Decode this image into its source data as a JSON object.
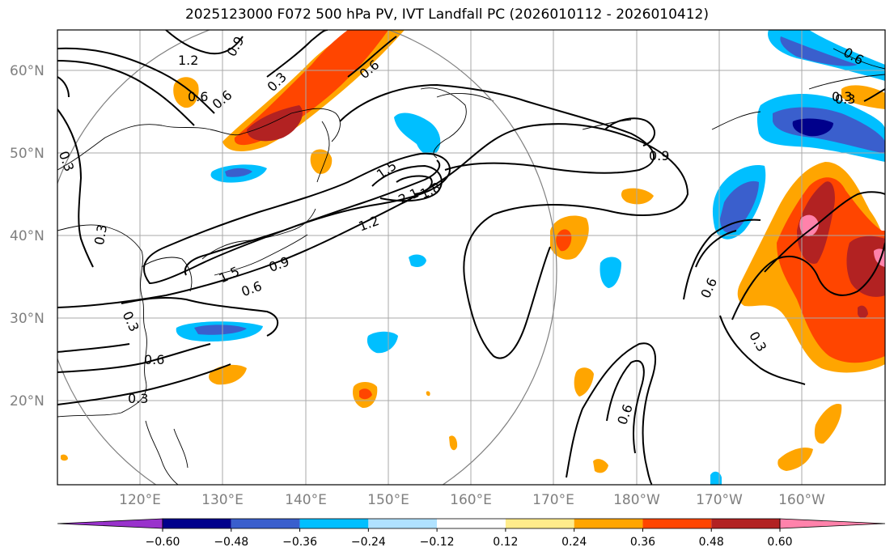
{
  "title": "2025123000 F072 500 hPa PV, IVT Landfall PC (2026010112 - 2026010412)",
  "latitude_labels": [
    "60°N",
    "50°N",
    "40°N",
    "30°N",
    "20°N"
  ],
  "longitude_labels": [
    "120°E",
    "130°E",
    "140°E",
    "150°E",
    "160°E",
    "170°E",
    "180°W",
    "170°W",
    "160°W"
  ],
  "colorbar": {
    "colors": [
      "#9932cc",
      "#00008b",
      "#3a5fcd",
      "#00bfff",
      "#b0e2ff",
      "#ffffff",
      "#ffec8b",
      "#ffa500",
      "#ff4500",
      "#b22222",
      "#ff82ab"
    ],
    "tick_labels": [
      "−0.60",
      "−0.48",
      "−0.36",
      "−0.24",
      "−0.12",
      "0.12",
      "0.24",
      "0.36",
      "0.48",
      "0.60"
    ]
  },
  "contour_labels": [
    "1.2",
    "0.9",
    "0.3",
    "0.6",
    "0.6",
    "0.6",
    "0.3",
    "0.3",
    "0.3",
    "1.5",
    "2.1",
    "1.8",
    "1.2",
    "1.5",
    "0.9",
    "0.6",
    "0.3",
    "0.6",
    "0.3",
    "0.9",
    "0.6",
    "0.3",
    "0.6",
    "0.6",
    "0.3"
  ]
}
